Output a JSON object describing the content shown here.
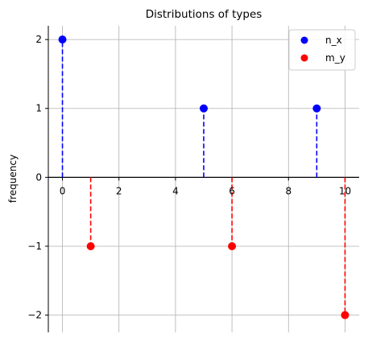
{
  "chart_data": {
    "type": "scatter",
    "subtype": "stem",
    "title": "Distributions of types",
    "xlabel": "",
    "ylabel": "frequency",
    "xlim": [
      -0.5,
      10.5
    ],
    "ylim": [
      -2.25,
      2.2
    ],
    "x_ticks": [
      0,
      2,
      4,
      6,
      8,
      10
    ],
    "y_ticks": [
      -2,
      -1,
      0,
      1,
      2
    ],
    "y_tick_labels": [
      "−2",
      "−1",
      "0",
      "1",
      "2"
    ],
    "grid": true,
    "legend_position": "top-right",
    "series": [
      {
        "name": "n_x",
        "color": "#0000ff",
        "stem_style": "dashed",
        "points": [
          [
            0,
            2
          ],
          [
            5,
            1
          ],
          [
            9,
            1
          ]
        ]
      },
      {
        "name": "m_y",
        "color": "#ff0000",
        "stem_style": "dashed",
        "points": [
          [
            1,
            -1
          ],
          [
            6,
            -1
          ],
          [
            10,
            -2
          ]
        ]
      }
    ]
  }
}
